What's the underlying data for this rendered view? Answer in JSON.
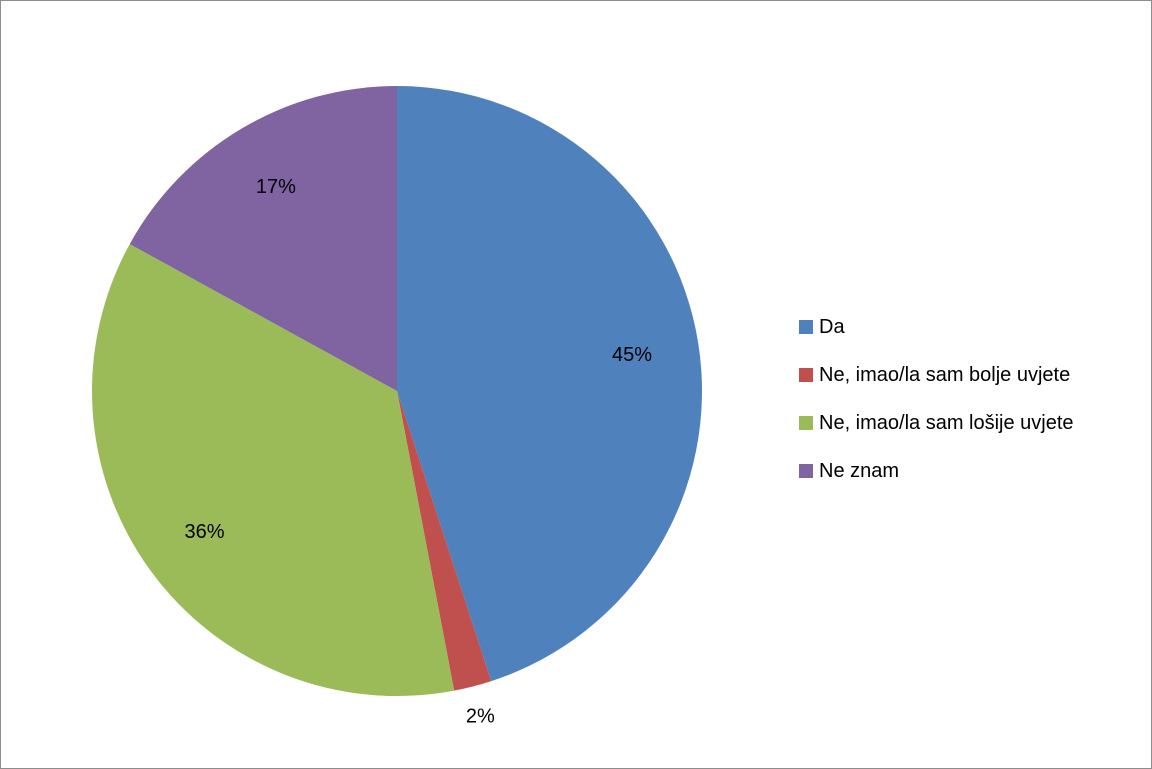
{
  "chart_data": {
    "type": "pie",
    "title": "",
    "categories": [
      "Da",
      "Ne, imao/la sam bolje uvjete",
      "Ne, imao/la sam lošije uvjete",
      "Ne znam"
    ],
    "values": [
      45,
      2,
      36,
      17
    ],
    "data_labels": [
      "45%",
      "2%",
      "36%",
      "17%"
    ],
    "colors": [
      "#4F81BD",
      "#C0504D",
      "#9BBB59",
      "#8064A2"
    ],
    "start_angle_deg": 0,
    "direction": "clockwise",
    "legend_position": "right"
  }
}
